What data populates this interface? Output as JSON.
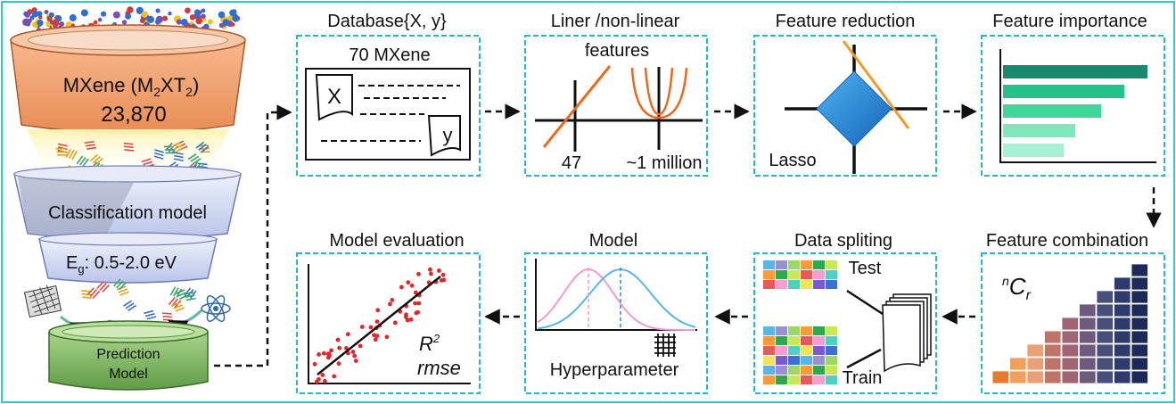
{
  "funnel": {
    "mxene_prefix": "MXene (M",
    "mxene_sub_m": "2",
    "mxene_mid": "XT",
    "mxene_sub_t": "2",
    "mxene_suffix": ")",
    "count": "23,870",
    "classification": "Classification model",
    "eg_prefix": "E",
    "eg_sub": "g",
    "eg_range": ": 0.5-2.0 eV",
    "prediction_line1": "Prediction",
    "prediction_line2": "Model"
  },
  "steps": {
    "database": {
      "title": "Database{X, y}",
      "subtitle": "70 MXene",
      "x_label": "X",
      "y_label": "y"
    },
    "features": {
      "title": "Liner /non-linear",
      "title2": "features",
      "linear_count": "47",
      "nonlinear_count": "~1 million"
    },
    "reduction": {
      "title": "Feature reduction",
      "method": "Lasso"
    },
    "importance": {
      "title": "Feature importance",
      "bar_values": [
        1.0,
        0.84,
        0.68,
        0.5,
        0.42
      ]
    },
    "combination": {
      "title": "Feature combination",
      "symbol_pre": "n",
      "symbol_main": "C",
      "symbol_sub": "r"
    },
    "splitting": {
      "title": "Data spliting",
      "test_label": "Test",
      "train_label": "Train"
    },
    "model": {
      "title": "Model",
      "hyper_label": "Hyperparameter"
    },
    "evaluation": {
      "title": "Model evaluation",
      "r2_main": "R",
      "r2_sup": "2",
      "rmse": "rmse"
    }
  },
  "colors": {
    "frame": "#35c4d2",
    "box_dash": "#27b8c8",
    "mxene_orange": "#f2a474",
    "funnel_blue": "#c9d2ef",
    "prediction_green": "#7fb665",
    "importance_dark": "#1a8a6e",
    "importance_light": "#a7f0d2",
    "lasso_blue": "#1f86d6",
    "fit_orange": "#e86a1e",
    "scatter_red": "#e3262b"
  }
}
